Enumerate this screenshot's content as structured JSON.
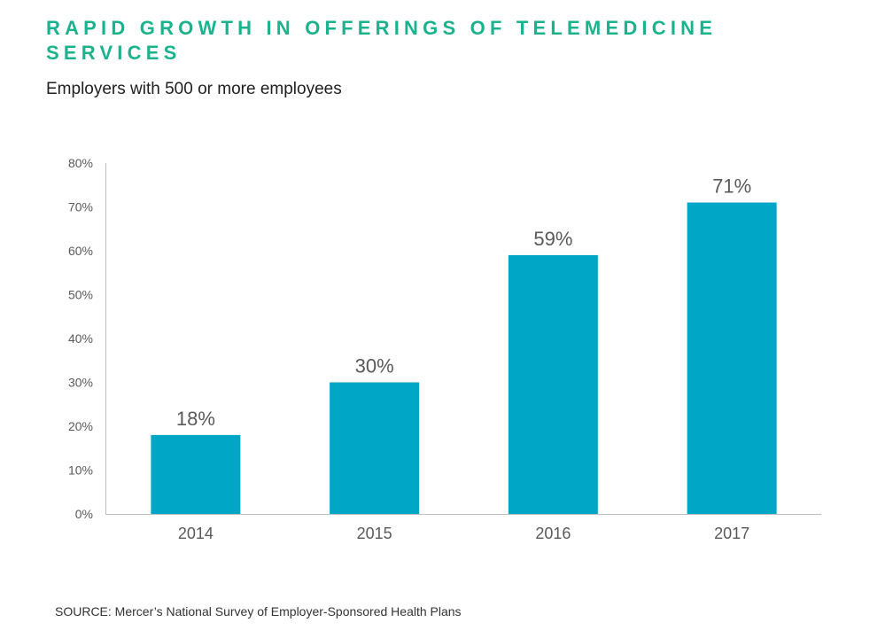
{
  "title": "RAPID GROWTH IN OFFERINGS OF TELEMEDICINE SERVICES",
  "subtitle": "Employers with 500 or more employees",
  "source": "SOURCE:  Mercer’s National Survey of Employer-Sponsored Health Plans",
  "colors": {
    "title": "#1bb38e",
    "bar": "#00a6c6",
    "axis": "#bfbfbf",
    "text": "#595959"
  },
  "chart_data": {
    "type": "bar",
    "title": "RAPID GROWTH IN OFFERINGS OF TELEMEDICINE SERVICES",
    "subtitle": "Employers with 500 or more employees",
    "categories": [
      "2014",
      "2015",
      "2016",
      "2017"
    ],
    "values": [
      18,
      30,
      59,
      71
    ],
    "data_labels": [
      "18%",
      "30%",
      "59%",
      "71%"
    ],
    "yticks": [
      "0%",
      "10%",
      "20%",
      "30%",
      "40%",
      "50%",
      "60%",
      "70%",
      "80%"
    ],
    "ylim": [
      0,
      80
    ],
    "xlabel": "",
    "ylabel": "",
    "grid": false,
    "legend": "none"
  }
}
